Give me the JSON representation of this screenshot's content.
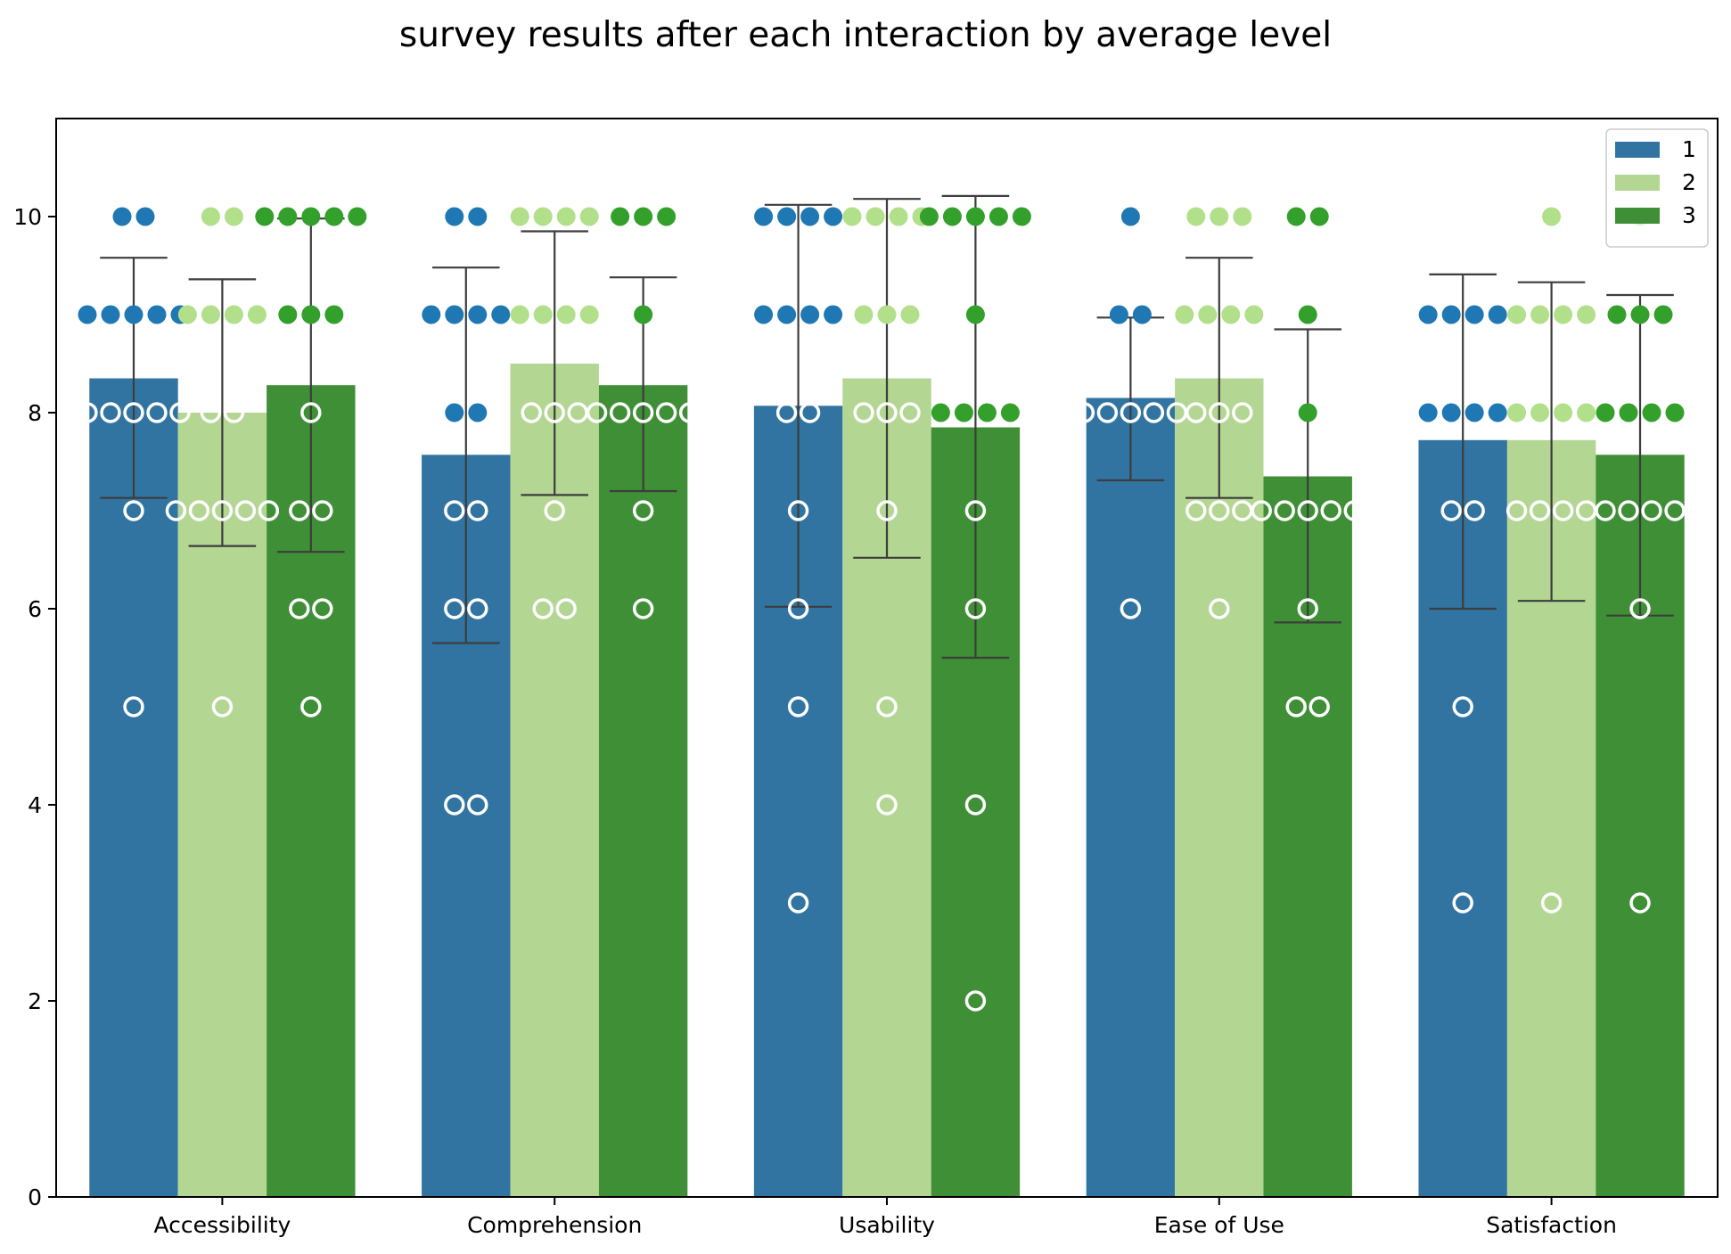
{
  "chart_data": {
    "type": "bar",
    "title": "survey results after each interaction by average level",
    "xlabel": "",
    "ylabel": "",
    "categories": [
      "Accessibility",
      "Comprehension",
      "Usability",
      "Ease of Use",
      "Satisfaction"
    ],
    "ylim": [
      0,
      11
    ],
    "yticks": [
      0,
      2,
      4,
      6,
      8,
      10
    ],
    "grid": false,
    "legend_position": "top-right",
    "series": [
      {
        "name": "1",
        "bar_color": "#3274a1",
        "point_color": "#1f78b4",
        "values": [
          8.35,
          7.57,
          8.07,
          8.15,
          7.72
        ],
        "error_low": [
          7.13,
          5.65,
          6.02,
          7.31,
          6.0
        ],
        "error_high": [
          9.58,
          9.48,
          10.12,
          8.97,
          9.41
        ],
        "points": [
          [
            10,
            10,
            9,
            9,
            9,
            9,
            9,
            8,
            8,
            8,
            8,
            8,
            7,
            5
          ],
          [
            10,
            10,
            9,
            9,
            9,
            9,
            8,
            8,
            7,
            7,
            6,
            6,
            4,
            4
          ],
          [
            10,
            10,
            10,
            10,
            9,
            9,
            9,
            9,
            8,
            8,
            7,
            6,
            5,
            3
          ],
          [
            10,
            9,
            9,
            8,
            8,
            8,
            8,
            8,
            6
          ],
          [
            9,
            9,
            9,
            9,
            8,
            8,
            8,
            8,
            7,
            7,
            5,
            3
          ]
        ]
      },
      {
        "name": "2",
        "bar_color": "#b3d693",
        "point_color": "#b2df8a",
        "values": [
          8.0,
          8.5,
          8.35,
          8.35,
          7.72
        ],
        "error_low": [
          6.64,
          7.16,
          6.52,
          7.13,
          6.08
        ],
        "error_high": [
          9.36,
          9.85,
          10.18,
          9.58,
          9.33
        ],
        "points": [
          [
            10,
            10,
            9,
            9,
            9,
            9,
            8,
            8,
            7,
            7,
            7,
            7,
            7,
            5
          ],
          [
            10,
            10,
            10,
            10,
            9,
            9,
            9,
            9,
            8,
            8,
            8,
            7,
            6,
            6
          ],
          [
            10,
            10,
            10,
            10,
            9,
            9,
            9,
            8,
            8,
            8,
            7,
            5,
            4
          ],
          [
            10,
            10,
            10,
            9,
            9,
            9,
            9,
            8,
            8,
            8,
            7,
            7,
            7,
            6
          ],
          [
            10,
            9,
            9,
            9,
            9,
            8,
            8,
            8,
            8,
            7,
            7,
            7,
            7,
            3
          ]
        ]
      },
      {
        "name": "3",
        "bar_color": "#3f8f37",
        "point_color": "#33a02c",
        "values": [
          8.28,
          8.28,
          7.85,
          7.35,
          7.57
        ],
        "error_low": [
          6.58,
          7.2,
          5.5,
          5.86,
          5.93
        ],
        "error_high": [
          9.98,
          9.38,
          10.21,
          8.85,
          9.2
        ],
        "points": [
          [
            10,
            10,
            10,
            10,
            10,
            9,
            9,
            9,
            8,
            7,
            7,
            6,
            6,
            5
          ],
          [
            10,
            10,
            10,
            9,
            8,
            8,
            8,
            8,
            8,
            7,
            6
          ],
          [
            10,
            10,
            10,
            10,
            10,
            9,
            8,
            8,
            8,
            8,
            7,
            6,
            4,
            2
          ],
          [
            10,
            10,
            9,
            8,
            7,
            7,
            7,
            7,
            7,
            6,
            5,
            5
          ],
          [
            10,
            9,
            9,
            9,
            8,
            8,
            8,
            8,
            7,
            7,
            7,
            7,
            6,
            3
          ]
        ]
      }
    ]
  }
}
